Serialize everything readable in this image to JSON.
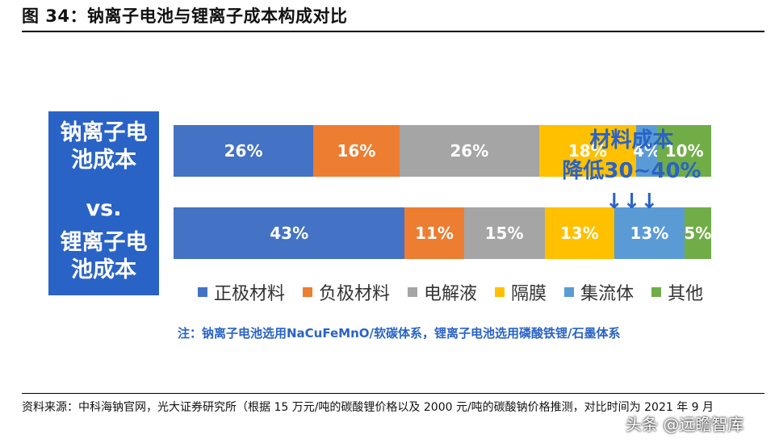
{
  "figure": {
    "title": "图 34：钠离子电池与锂离子成本构成对比"
  },
  "left_panel": {
    "na_label": "钠离子电池成本",
    "vs_label": "vs.",
    "li_label": "锂离子电池成本"
  },
  "annotation": {
    "line1": "材料成本",
    "line2": "降低30~40% ↓↓↓"
  },
  "note": "注：钠离子电池选用NaCuFeMnO/软碳体系，锂离子电池选用磷酸铁锂/石墨体系",
  "source": "资料来源：中科海钠官网，光大证券研究所（根据 15 万元/吨的碳酸锂价格以及 2000 元/吨的碳酸钠价格推测，对比时间为 2021 年 9 月",
  "watermark": "头条 @远瞻智库",
  "colors": {
    "正极材料": "#4472c4",
    "负极材料": "#ed7d31",
    "电解液": "#a5a5a5",
    "隔膜": "#ffc000",
    "集流体": "#5b9bd5",
    "其他": "#70ad47"
  },
  "chart_data": {
    "type": "bar",
    "orientation": "horizontal",
    "stacked": true,
    "categories": [
      "钠离子电池成本",
      "锂离子电池成本"
    ],
    "series": [
      {
        "name": "正极材料",
        "values": [
          26,
          43
        ],
        "labels": [
          "26%",
          "43%"
        ]
      },
      {
        "name": "负极材料",
        "values": [
          16,
          11
        ],
        "labels": [
          "16%",
          "11%"
        ]
      },
      {
        "name": "电解液",
        "values": [
          26,
          15
        ],
        "labels": [
          "26%",
          "15%"
        ]
      },
      {
        "name": "隔膜",
        "values": [
          18,
          13
        ],
        "labels": [
          "18%",
          "13%"
        ]
      },
      {
        "name": "集流体",
        "values": [
          4,
          13
        ],
        "labels": [
          "4%",
          "13%"
        ]
      },
      {
        "name": "其他",
        "values": [
          10,
          5
        ],
        "labels": [
          "10%",
          "5%"
        ]
      }
    ],
    "legend_position": "bottom",
    "grid": false
  }
}
